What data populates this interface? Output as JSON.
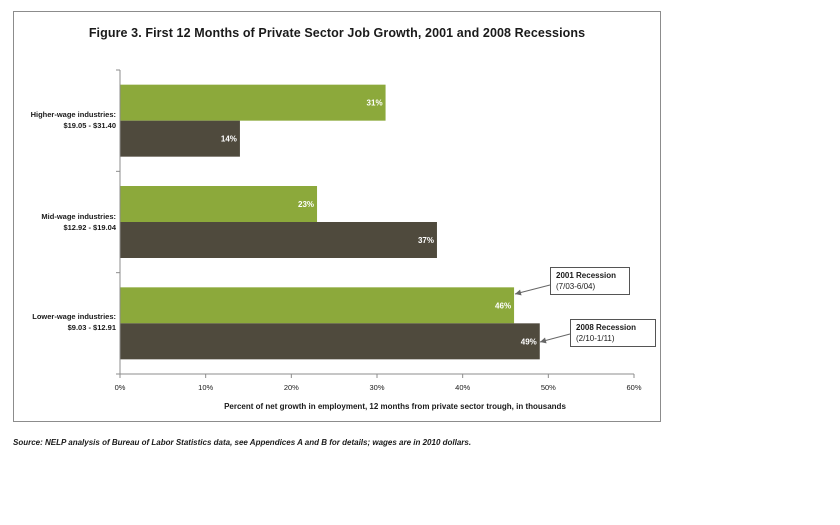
{
  "chart_data": {
    "type": "bar",
    "orientation": "horizontal",
    "title": "Figure 3.  First 12 Months of Private Sector Job Growth, 2001 and 2008 Recessions",
    "categories": [
      [
        "Higher-wage industries:",
        "$19.05 - $31.40"
      ],
      [
        "Mid-wage industries:",
        "$12.92 - $19.04"
      ],
      [
        "Lower-wage industries:",
        "$9.03 - $12.91"
      ]
    ],
    "series": [
      {
        "name": "2001 Recession",
        "detail": "(7/03-6/04)",
        "values": [
          31,
          23,
          46
        ],
        "labels": [
          "31%",
          "23%",
          "46%"
        ]
      },
      {
        "name": "2008 Recession",
        "detail": "(2/10-1/11)",
        "values": [
          14,
          37,
          49
        ],
        "labels": [
          "14%",
          "37%",
          "49%"
        ]
      }
    ],
    "xlabel": "Percent of net growth in employment, 12 months from private sector trough, in thousands",
    "xlim": [
      0,
      60
    ],
    "xticks": [
      0,
      10,
      20,
      30,
      40,
      50,
      60
    ],
    "xtick_labels": [
      "0%",
      "10%",
      "20%",
      "30%",
      "40%",
      "50%",
      "60%"
    ],
    "gridlines": false,
    "legend": "callout annotations"
  },
  "colors": {
    "series_2001": "#8ca93b",
    "series_2008": "#4f4a3d",
    "axis": "#8c8c8c",
    "bar_label": "#ffffff"
  },
  "source": "Source: NELP analysis of Bureau of Labor Statistics data, see Appendices A and B for details; wages are in 2010 dollars."
}
